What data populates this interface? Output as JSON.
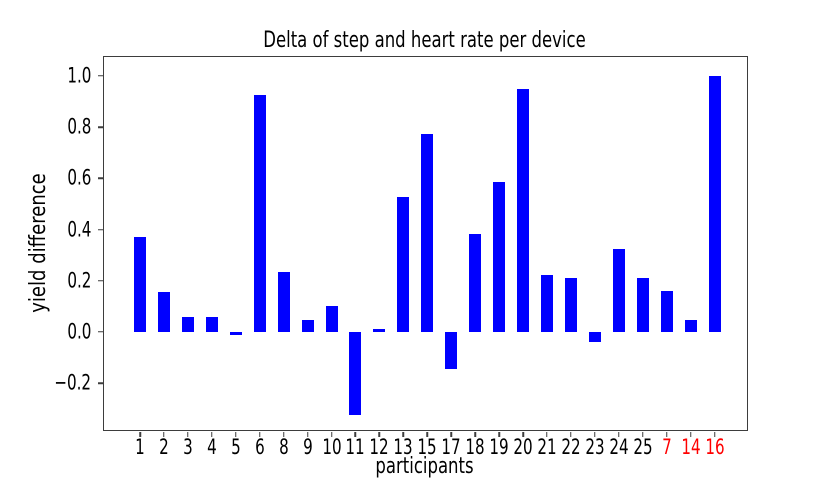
{
  "chart_data": {
    "type": "bar",
    "title": "Delta of step and heart rate per device",
    "xlabel": "participants",
    "ylabel": "yield difference",
    "categories": [
      "1",
      "2",
      "3",
      "4",
      "5",
      "6",
      "8",
      "9",
      "10",
      "11",
      "12",
      "13",
      "15",
      "17",
      "18",
      "19",
      "20",
      "21",
      "22",
      "23",
      "24",
      "25",
      "7",
      "14",
      "16"
    ],
    "values": [
      0.37,
      0.155,
      0.057,
      0.057,
      -0.012,
      0.925,
      0.235,
      0.047,
      0.102,
      -0.325,
      0.012,
      0.528,
      0.772,
      -0.145,
      0.382,
      0.585,
      0.95,
      0.222,
      0.212,
      -0.04,
      0.323,
      0.212,
      0.16,
      0.045,
      1.0
    ],
    "highlighted_categories": [
      "7",
      "14",
      "16"
    ],
    "yticks": [
      -0.2,
      0.0,
      0.2,
      0.4,
      0.6,
      0.8,
      1.0
    ],
    "ylim": [
      -0.383,
      1.074
    ],
    "grid": false,
    "colors": {
      "bar": "#0000ff",
      "tick_label": "#000000",
      "highlighted_tick_label": "#ff0000",
      "spine": "#3d3d3d",
      "background": "#ffffff"
    }
  }
}
